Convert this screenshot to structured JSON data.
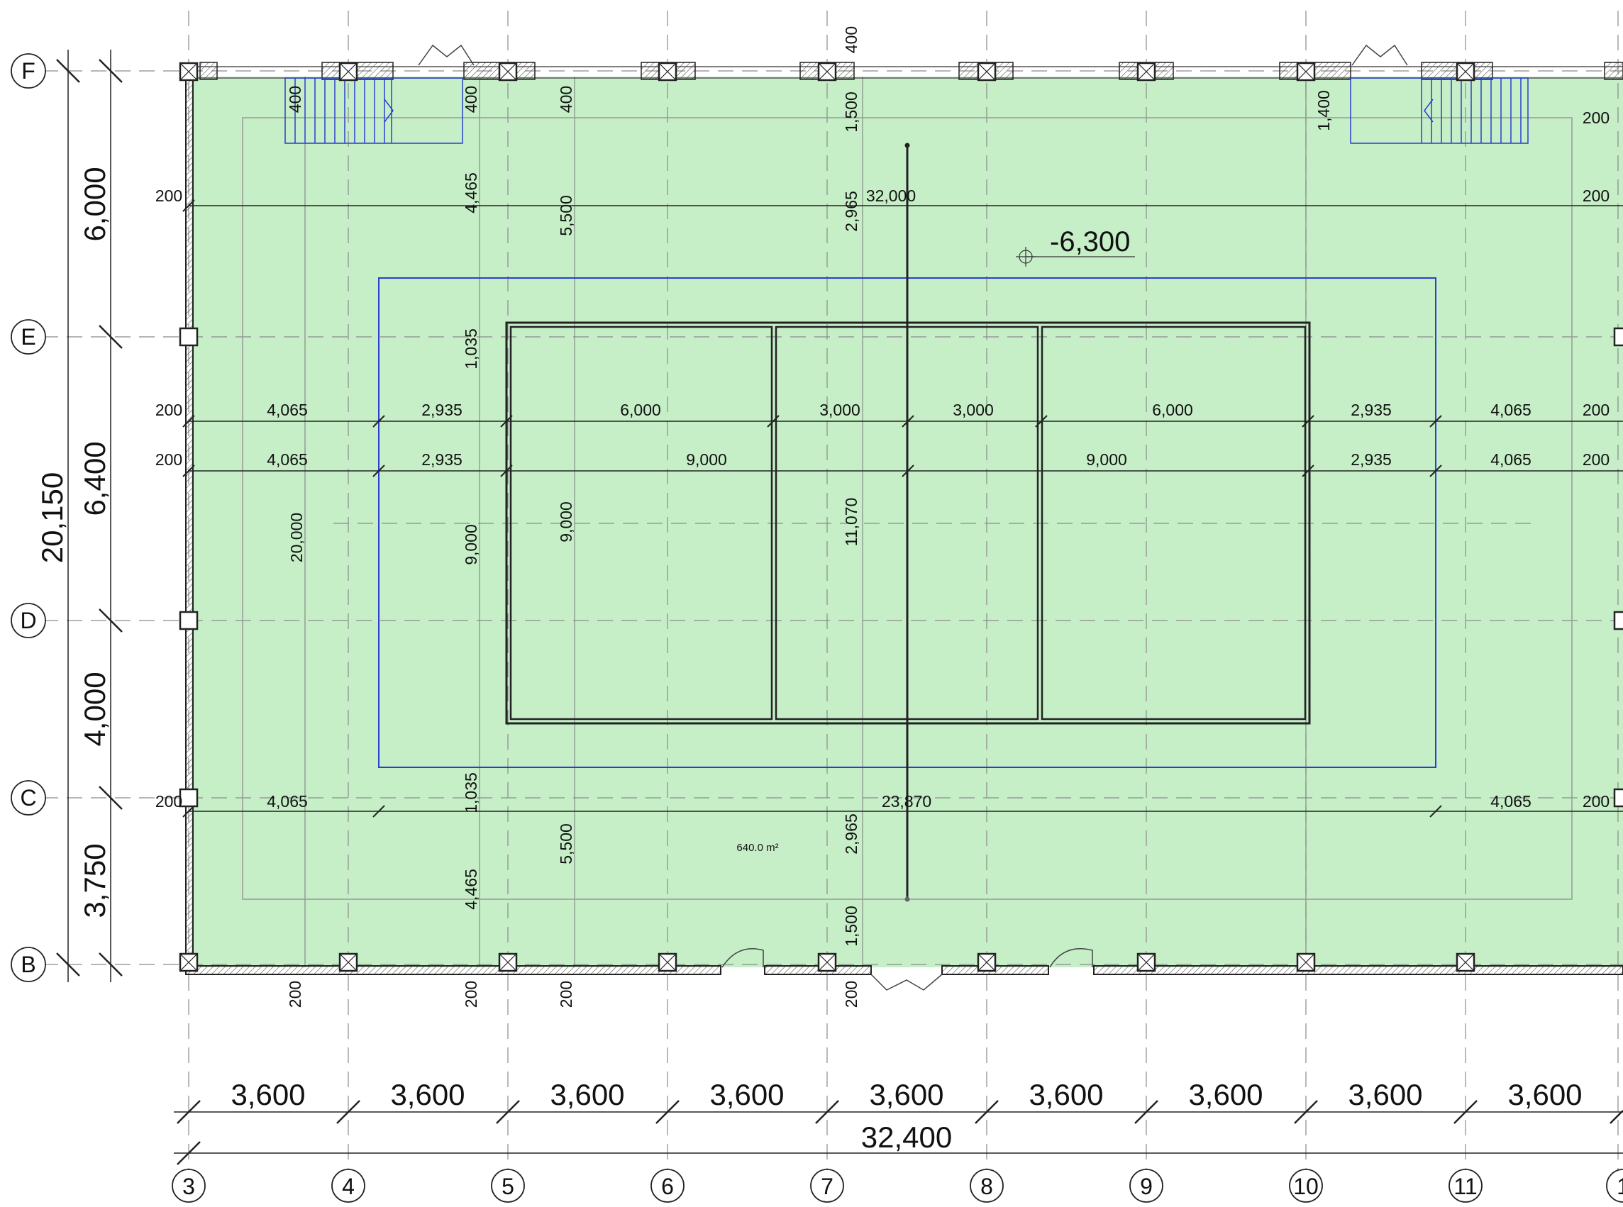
{
  "columns": [
    "3",
    "4",
    "5",
    "6",
    "7",
    "8",
    "9",
    "10",
    "11",
    "1"
  ],
  "rows": [
    "F",
    "E",
    "D",
    "C",
    "B"
  ],
  "bottom_spans": [
    "3,600",
    "3,600",
    "3,600",
    "3,600",
    "3,600",
    "3,600",
    "3,600",
    "3,600",
    "3,600"
  ],
  "overall_width": "32,400",
  "left_spans": [
    "6,000",
    "6,400",
    "4,000",
    "3,750"
  ],
  "overall_height": "20,150",
  "elevation": "-6,300",
  "area": "640.0 m²",
  "court_length": "32,000",
  "court_length_bottom": "23,870",
  "row1": [
    "200",
    "4,065",
    "2,935",
    "6,000",
    "3,000",
    "3,000",
    "6,000",
    "2,935",
    "4,065",
    "200"
  ],
  "row2": [
    "200",
    "4,065",
    "2,935",
    "9,000",
    "9,000",
    "2,935",
    "4,065",
    "200"
  ],
  "row3": [
    "200",
    "4,065",
    "4,065",
    "200"
  ],
  "vertical_dims": {
    "four_thousand": [
      "400",
      "400",
      "400",
      "400"
    ],
    "stair_right": "1,400",
    "top_left": "4,465",
    "top_mid": "5,500",
    "top_center": "2,965",
    "top_center_small": "1,500",
    "mid_a": "1,035",
    "mid_b": "1,035",
    "field_a": "20,000",
    "field_b": "9,000",
    "field_c": "9,000",
    "field_d": "11,070",
    "bot_left": "4,465",
    "bot_mid": "5,500",
    "bot_center": "2,965",
    "bot_center_small": "1,500",
    "wall_bottom": [
      "200",
      "200",
      "200",
      "200"
    ],
    "side_200": [
      "200",
      "200",
      "200"
    ]
  }
}
